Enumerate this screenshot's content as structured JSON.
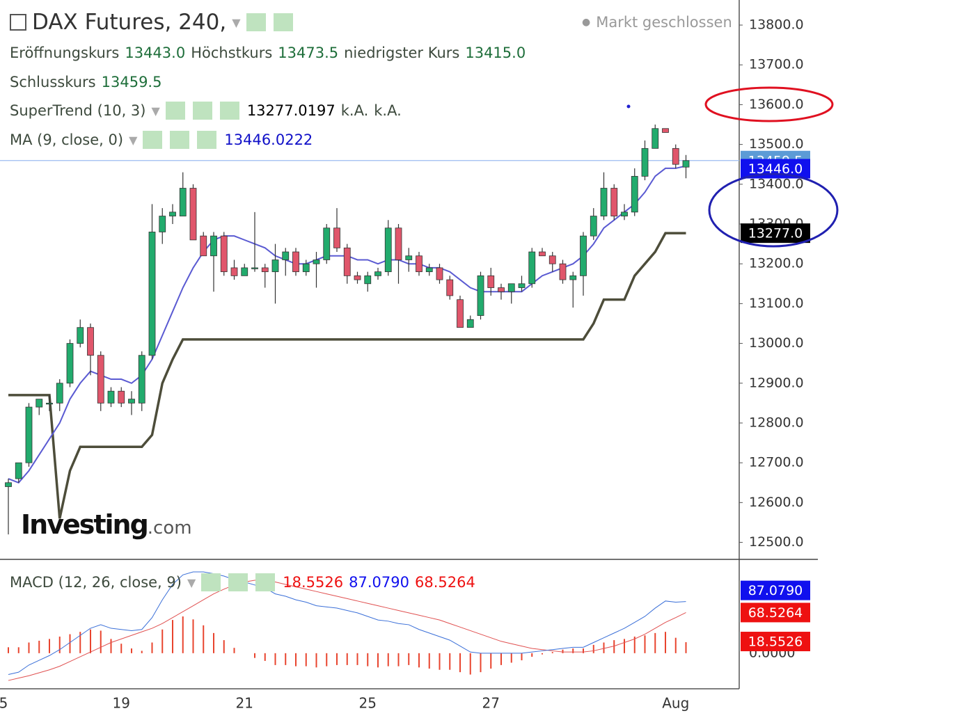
{
  "chart_data": {
    "type": "candlestick",
    "title": "DAX Futures, 240,",
    "status": "Markt geschlossen",
    "ohlc_names": {
      "open": "Eröffnungskurs",
      "high": "Höchstkurs",
      "low": "niedrigster Kurs",
      "close": "Schlusskurs"
    },
    "ohlc_labels": {
      "open": "13443.0",
      "high": "13473.5",
      "low": "13415.0"
    },
    "logo": {
      "main": "Investing",
      "suffix": ".com"
    },
    "categories": [
      "5",
      null,
      null,
      null,
      null,
      null,
      null,
      null,
      null,
      null,
      null,
      "19",
      null,
      null,
      null,
      null,
      null,
      null,
      null,
      null,
      null,
      null,
      null,
      "21",
      null,
      null,
      null,
      null,
      null,
      null,
      null,
      null,
      null,
      null,
      null,
      "25",
      null,
      null,
      null,
      null,
      null,
      null,
      null,
      null,
      null,
      null,
      null,
      "27",
      null,
      null,
      null,
      null,
      null,
      null,
      null,
      null,
      null,
      null,
      null,
      null,
      null,
      null,
      null,
      null,
      null,
      "Aug",
      null
    ],
    "open": [
      12640,
      12660,
      12700,
      12840,
      12850,
      12850,
      12900,
      13000,
      13040,
      12970,
      12850,
      12880,
      12850,
      12850,
      12970,
      13280,
      13320,
      13320,
      13390,
      13270,
      13220,
      13270,
      13190,
      13170,
      13190,
      13190,
      13180,
      13210,
      13230,
      13180,
      13200,
      13210,
      13290,
      13240,
      13170,
      13150,
      13170,
      13180,
      13290,
      13210,
      13220,
      13180,
      13190,
      13160,
      13110,
      13040,
      13070,
      13170,
      13140,
      13130,
      13140,
      13150,
      13230,
      13220,
      13200,
      13160,
      13170,
      13270,
      13320,
      13390,
      13320,
      13330,
      13420,
      13490,
      13540,
      13490,
      13443
    ],
    "high": [
      12660,
      12700,
      12850,
      12860,
      12870,
      12910,
      13010,
      13060,
      13050,
      12980,
      12890,
      12890,
      12880,
      12980,
      13350,
      13340,
      13350,
      13430,
      13400,
      13280,
      13280,
      13280,
      13210,
      13200,
      13330,
      13200,
      13250,
      13240,
      13240,
      13210,
      13230,
      13300,
      13340,
      13250,
      13180,
      13180,
      13190,
      13310,
      13300,
      13240,
      13230,
      13200,
      13200,
      13170,
      13120,
      13070,
      13180,
      13190,
      13150,
      13150,
      13170,
      13240,
      13240,
      13230,
      13210,
      13180,
      13280,
      13340,
      13430,
      13400,
      13350,
      13440,
      13510,
      13550,
      13540,
      13500,
      13473.5
    ],
    "low": [
      12520,
      12650,
      12690,
      12820,
      12830,
      12830,
      12890,
      12990,
      12920,
      12830,
      12840,
      12840,
      12820,
      12830,
      12960,
      13250,
      13300,
      13320,
      13260,
      13220,
      13130,
      13170,
      13160,
      13170,
      13180,
      13140,
      13100,
      13170,
      13170,
      13170,
      13140,
      13200,
      13230,
      13150,
      13150,
      13130,
      13160,
      13170,
      13150,
      13180,
      13170,
      13170,
      13150,
      13110,
      13040,
      13040,
      13060,
      13120,
      13110,
      13100,
      13130,
      13140,
      13220,
      13180,
      13150,
      13090,
      13120,
      13260,
      13310,
      13310,
      13310,
      13320,
      13410,
      13490,
      13530,
      13440,
      13415
    ],
    "close": [
      12650,
      12700,
      12840,
      12860,
      12850,
      12900,
      13000,
      13040,
      12970,
      12850,
      12880,
      12850,
      12860,
      12970,
      13280,
      13320,
      13330,
      13390,
      13260,
      13220,
      13270,
      13180,
      13170,
      13190,
      13190,
      13180,
      13210,
      13230,
      13180,
      13200,
      13210,
      13290,
      13240,
      13170,
      13160,
      13170,
      13180,
      13290,
      13210,
      13220,
      13180,
      13190,
      13160,
      13120,
      13040,
      13060,
      13170,
      13140,
      13130,
      13150,
      13150,
      13230,
      13220,
      13200,
      13160,
      13170,
      13270,
      13320,
      13390,
      13320,
      13330,
      13420,
      13490,
      13540,
      13530,
      13450,
      13459.5
    ],
    "up_color": "#22ab6d",
    "down_color": "#e0566b",
    "series": [
      {
        "name": "MA (9, close, 0)",
        "color": "#5a5ad2",
        "legend_color": "#1010c8",
        "tag": "13446.0",
        "tag_color": "#1010ee",
        "values": [
          12660,
          12650,
          12680,
          12720,
          12760,
          12800,
          12860,
          12900,
          12930,
          12920,
          12910,
          12910,
          12900,
          12920,
          12960,
          13020,
          13080,
          13140,
          13190,
          13230,
          13260,
          13270,
          13270,
          13260,
          13250,
          13240,
          13220,
          13210,
          13200,
          13200,
          13210,
          13220,
          13220,
          13220,
          13210,
          13210,
          13200,
          13210,
          13210,
          13200,
          13200,
          13190,
          13190,
          13180,
          13160,
          13140,
          13130,
          13130,
          13130,
          13130,
          13130,
          13150,
          13170,
          13180,
          13190,
          13200,
          13220,
          13250,
          13290,
          13310,
          13330,
          13350,
          13380,
          13420,
          13440,
          13440,
          13446.0222
        ]
      },
      {
        "name": "SuperTrend (10, 3)",
        "color": "#4d4d3a",
        "legend_color": "#000000",
        "tag": "13277.0",
        "tag_color": "#000000",
        "extra": "k.A.",
        "values": [
          12870,
          12870,
          12870,
          12870,
          12870,
          12560,
          12680,
          12740,
          12740,
          12740,
          12740,
          12740,
          12740,
          12740,
          12770,
          12900,
          12960,
          13010,
          13010,
          13010,
          13010,
          13010,
          13010,
          13010,
          13010,
          13010,
          13010,
          13010,
          13010,
          13010,
          13010,
          13010,
          13010,
          13010,
          13010,
          13010,
          13010,
          13010,
          13010,
          13010,
          13010,
          13010,
          13010,
          13010,
          13010,
          13010,
          13010,
          13010,
          13010,
          13010,
          13010,
          13010,
          13010,
          13010,
          13010,
          13010,
          13010,
          13050,
          13110,
          13110,
          13110,
          13170,
          13200,
          13230,
          13277,
          13277,
          13277.0197
        ]
      }
    ],
    "close_tag_color": "#5c9bd6",
    "ylim": [
      12459,
      13863
    ],
    "yticks": [
      {
        "value": 12500,
        "label": "12500.0"
      },
      {
        "value": 12600,
        "label": "12600.0"
      },
      {
        "value": 12700,
        "label": "12700.0"
      },
      {
        "value": 12800,
        "label": "12800.0"
      },
      {
        "value": 12900,
        "label": "12900.0"
      },
      {
        "value": 13000,
        "label": "13000.0"
      },
      {
        "value": 13100,
        "label": "13100.0"
      },
      {
        "value": 13200,
        "label": "13200.0"
      },
      {
        "value": 13300,
        "label": "13300.0"
      },
      {
        "value": 13400,
        "label": "13400.0"
      },
      {
        "value": 13500,
        "label": "13500.0"
      },
      {
        "value": 13600,
        "label": "13600.0"
      },
      {
        "value": 13700,
        "label": "13700.0"
      },
      {
        "value": 13800,
        "label": "13800.0"
      }
    ],
    "macd": {
      "name": "MACD (12, 26, close, 9)",
      "y2lim": [
        -60,
        157
      ],
      "y2ticks": [
        {
          "value": 0,
          "label": "0.0000"
        }
      ],
      "hist_color": "#e8442e",
      "macd_color": "#3a6fd8",
      "signal_color": "#e05050",
      "labels": {
        "hist": "18.5526",
        "macd": "87.0790",
        "signal": "68.5264"
      },
      "tag_colors": {
        "hist": "#ee1111",
        "macd": "#1010ee",
        "signal": "#ee1111"
      },
      "hist": [
        10,
        10,
        18,
        21,
        24,
        28,
        32,
        36,
        40,
        38,
        24,
        16,
        8,
        4,
        18,
        40,
        56,
        62,
        57,
        47,
        34,
        22,
        9,
        0,
        -8,
        -13,
        -20,
        -20,
        -22,
        -22,
        -24,
        -22,
        -20,
        -20,
        -20,
        -22,
        -24,
        -22,
        -22,
        -20,
        -24,
        -26,
        -28,
        -28,
        -32,
        -36,
        -32,
        -26,
        -20,
        -16,
        -12,
        -6,
        -2,
        2,
        6,
        8,
        8,
        14,
        18,
        22,
        24,
        28,
        30,
        34,
        36,
        26,
        18.5526
      ],
      "macd": [
        -36,
        -32,
        -20,
        -12,
        -4,
        6,
        18,
        30,
        42,
        48,
        42,
        40,
        38,
        40,
        60,
        90,
        116,
        132,
        137,
        137,
        134,
        130,
        124,
        120,
        115,
        110,
        100,
        96,
        90,
        86,
        80,
        78,
        76,
        72,
        68,
        62,
        56,
        54,
        50,
        48,
        40,
        34,
        28,
        22,
        12,
        2,
        0,
        0,
        0,
        0,
        0,
        2,
        4,
        6,
        8,
        10,
        10,
        18,
        26,
        34,
        42,
        52,
        62,
        76,
        88,
        86,
        87.079
      ],
      "signal": [
        -46,
        -42,
        -38,
        -33,
        -28,
        -22,
        -14,
        -6,
        2,
        10,
        18,
        24,
        30,
        36,
        42,
        50,
        60,
        70,
        80,
        90,
        100,
        108,
        115,
        120,
        123,
        123,
        120,
        116,
        112,
        108,
        104,
        100,
        96,
        92,
        88,
        84,
        80,
        76,
        72,
        68,
        64,
        60,
        56,
        50,
        44,
        38,
        32,
        26,
        20,
        16,
        12,
        8,
        6,
        4,
        2,
        2,
        2,
        4,
        8,
        12,
        18,
        24,
        32,
        42,
        52,
        60,
        68.5264
      ]
    }
  }
}
